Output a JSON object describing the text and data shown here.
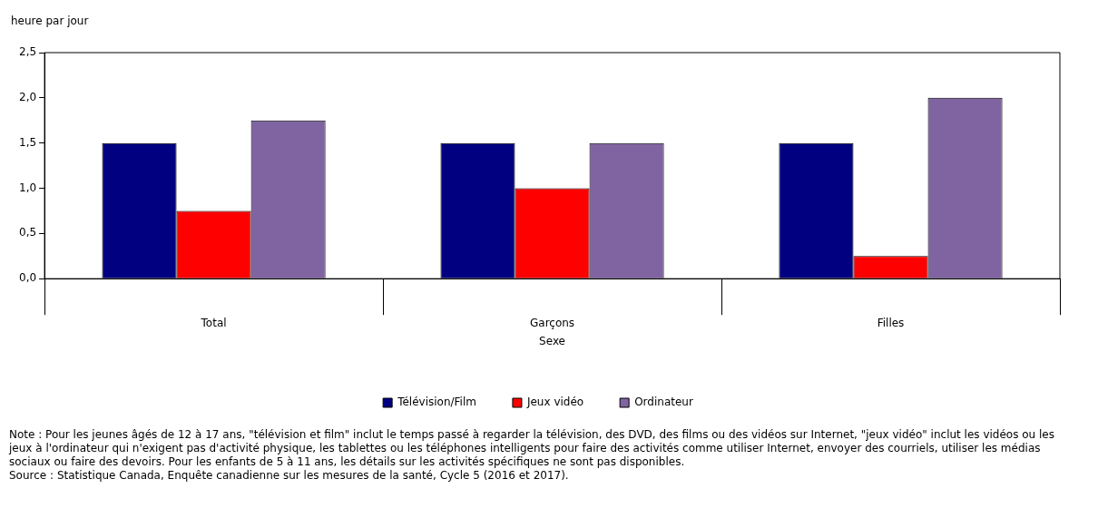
{
  "chart_data": {
    "type": "bar",
    "ylabel": "heure par jour",
    "xlabel": "Sexe",
    "categories": [
      "Total",
      "Garçons",
      "Filles"
    ],
    "series": [
      {
        "name": "Télévision/Film",
        "color": "#000080",
        "values": [
          1.5,
          1.5,
          1.5
        ]
      },
      {
        "name": "Jeux vidéo",
        "color": "#ff0000",
        "values": [
          0.75,
          1.0,
          0.25
        ]
      },
      {
        "name": "Ordinateur",
        "color": "#8064a2",
        "values": [
          1.75,
          1.5,
          2.0
        ]
      }
    ],
    "ylim": [
      0,
      2.5
    ],
    "yticks": [
      {
        "value": 0,
        "label": "0,0"
      },
      {
        "value": 0.5,
        "label": "0,5"
      },
      {
        "value": 1,
        "label": "1,0"
      },
      {
        "value": 1.5,
        "label": "1,5"
      },
      {
        "value": 2,
        "label": "2,0"
      },
      {
        "value": 2.5,
        "label": "2,5"
      }
    ],
    "grid": false,
    "legend": "bottom",
    "annotations": [
      "Note : Pour les jeunes âgés de 12 à 17 ans, \"télévision et film\" inclut le temps passé à regarder la télévision, des DVD, des films ou des vidéos sur Internet, \"jeux vidéo\" inclut les vidéos ou les jeux à l'ordinateur qui n'exigent pas d'activité physique, les tablettes ou les téléphones intelligents pour faire des activités comme utiliser Internet, envoyer des courriels, utiliser les médias sociaux ou faire des devoirs. Pour les enfants de 5 à 11 ans, les détails sur les activités spécifiques ne sont pas disponibles.",
      "Source : Statistique Canada, Enquête canadienne sur les mesures de la santé, Cycle 5 (2016 et 2017)."
    ]
  }
}
